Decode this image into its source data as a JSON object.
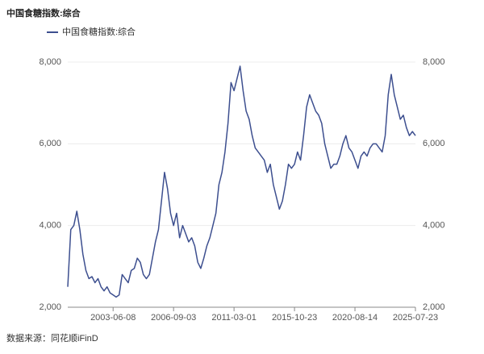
{
  "chart_data": {
    "type": "line",
    "title": "中国食糖指数:综合",
    "source": "数据来源：同花顺iFinD",
    "categories": [
      null,
      null,
      null,
      null,
      null,
      null,
      null,
      null,
      null,
      null,
      null,
      null,
      null,
      null,
      null,
      "2003-06-08",
      null,
      null,
      null,
      null,
      null,
      null,
      null,
      null,
      null,
      null,
      null,
      null,
      null,
      null,
      null,
      null,
      null,
      null,
      null,
      "2006-09-03",
      null,
      null,
      null,
      null,
      null,
      null,
      null,
      null,
      null,
      null,
      null,
      null,
      null,
      null,
      null,
      null,
      null,
      null,
      null,
      "2011-03-01",
      null,
      null,
      null,
      null,
      null,
      null,
      null,
      null,
      null,
      null,
      null,
      null,
      null,
      null,
      null,
      null,
      null,
      null,
      null,
      "2015-10-23",
      null,
      null,
      null,
      null,
      null,
      null,
      null,
      null,
      null,
      null,
      null,
      null,
      null,
      null,
      null,
      null,
      null,
      null,
      null,
      "2020-08-14",
      null,
      null,
      null,
      null,
      null,
      null,
      null,
      null,
      null,
      null,
      null,
      null,
      null,
      null,
      null,
      null,
      null,
      null,
      null,
      "2025-07-23"
    ],
    "series": [
      {
        "name": "中国食糖指数:综合",
        "color": "#3d4f8f",
        "values": [
          2500,
          3900,
          4000,
          4350,
          3900,
          3300,
          2900,
          2700,
          2750,
          2600,
          2700,
          2500,
          2400,
          2500,
          2350,
          2300,
          2250,
          2300,
          2800,
          2700,
          2600,
          2900,
          2950,
          3200,
          3100,
          2800,
          2700,
          2800,
          3200,
          3600,
          3900,
          4600,
          5300,
          4900,
          4300,
          4000,
          4300,
          3700,
          4000,
          3800,
          3600,
          3700,
          3500,
          3100,
          2950,
          3200,
          3500,
          3700,
          4000,
          4300,
          5000,
          5300,
          5800,
          6500,
          7500,
          7300,
          7600,
          7900,
          7300,
          6800,
          6600,
          6200,
          5900,
          5800,
          5700,
          5600,
          5300,
          5500,
          5000,
          4700,
          4400,
          4600,
          5000,
          5500,
          5400,
          5500,
          5800,
          5600,
          6200,
          6900,
          7200,
          7000,
          6800,
          6700,
          6500,
          6000,
          5700,
          5400,
          5500,
          5500,
          5700,
          6000,
          6200,
          5900,
          5800,
          5600,
          5400,
          5700,
          5800,
          5700,
          5900,
          6000,
          6000,
          5900,
          5800,
          6200,
          7200,
          7700,
          7200,
          6900,
          6600,
          6700,
          6400,
          6200,
          6300,
          6200
        ]
      }
    ],
    "ylim": [
      2000,
      8000
    ],
    "yticks": [
      {
        "value": 2000,
        "label": "2,000"
      },
      {
        "value": 4000,
        "label": "4,000"
      },
      {
        "value": 6000,
        "label": "6,000"
      },
      {
        "value": 8000,
        "label": "8,000"
      }
    ],
    "y2lim": [
      2000,
      8000
    ],
    "y2ticks": [
      {
        "value": 2000,
        "label": "2,000"
      },
      {
        "value": 4000,
        "label": "4,000"
      },
      {
        "value": 6000,
        "label": "6,000"
      },
      {
        "value": 8000,
        "label": "8,000"
      }
    ],
    "grid": true,
    "legend": "top-left"
  }
}
